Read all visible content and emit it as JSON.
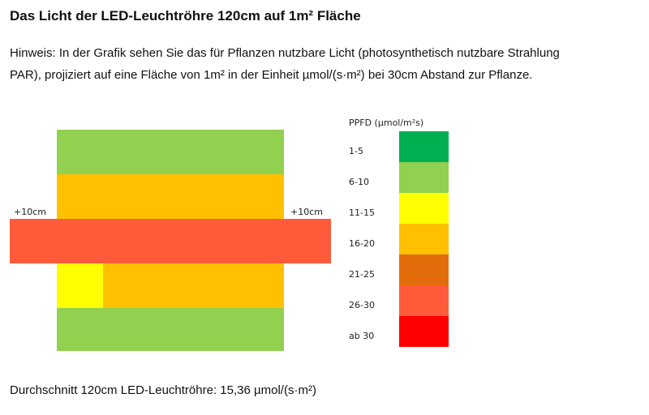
{
  "title": "Das Licht der LED-Leuchtröhre 120cm auf 1m² Fläche",
  "note": [
    "Hinweis: In der Grafik sehen Sie das für Pflanzen nutzbare Licht (photosynthetisch nutzbare Strahlung",
    "PAR), projiziert auf eine Fläche von 1m² in der Einheit µmol/(s·m²) bei 30cm Abstand zur Pflanze."
  ],
  "diagram": {
    "left_label": "+10cm",
    "right_label": "+10cm"
  },
  "legend": {
    "title": "PPFD (µmol/m²s)",
    "items": [
      {
        "label": "1-5",
        "color": "#00b050"
      },
      {
        "label": "6-10",
        "color": "#92d050"
      },
      {
        "label": "11-15",
        "color": "#ffff00"
      },
      {
        "label": "16-20",
        "color": "#ffc000"
      },
      {
        "label": "21-25",
        "color": "#e36c0a"
      },
      {
        "label": "26-30",
        "color": "#ff5b3b"
      },
      {
        "label": "ab 30",
        "color": "#ff0000"
      }
    ]
  },
  "footer": "Durchschnitt 120cm LED-Leuchtröhre: 15,36 µmol/(s·m²)"
}
